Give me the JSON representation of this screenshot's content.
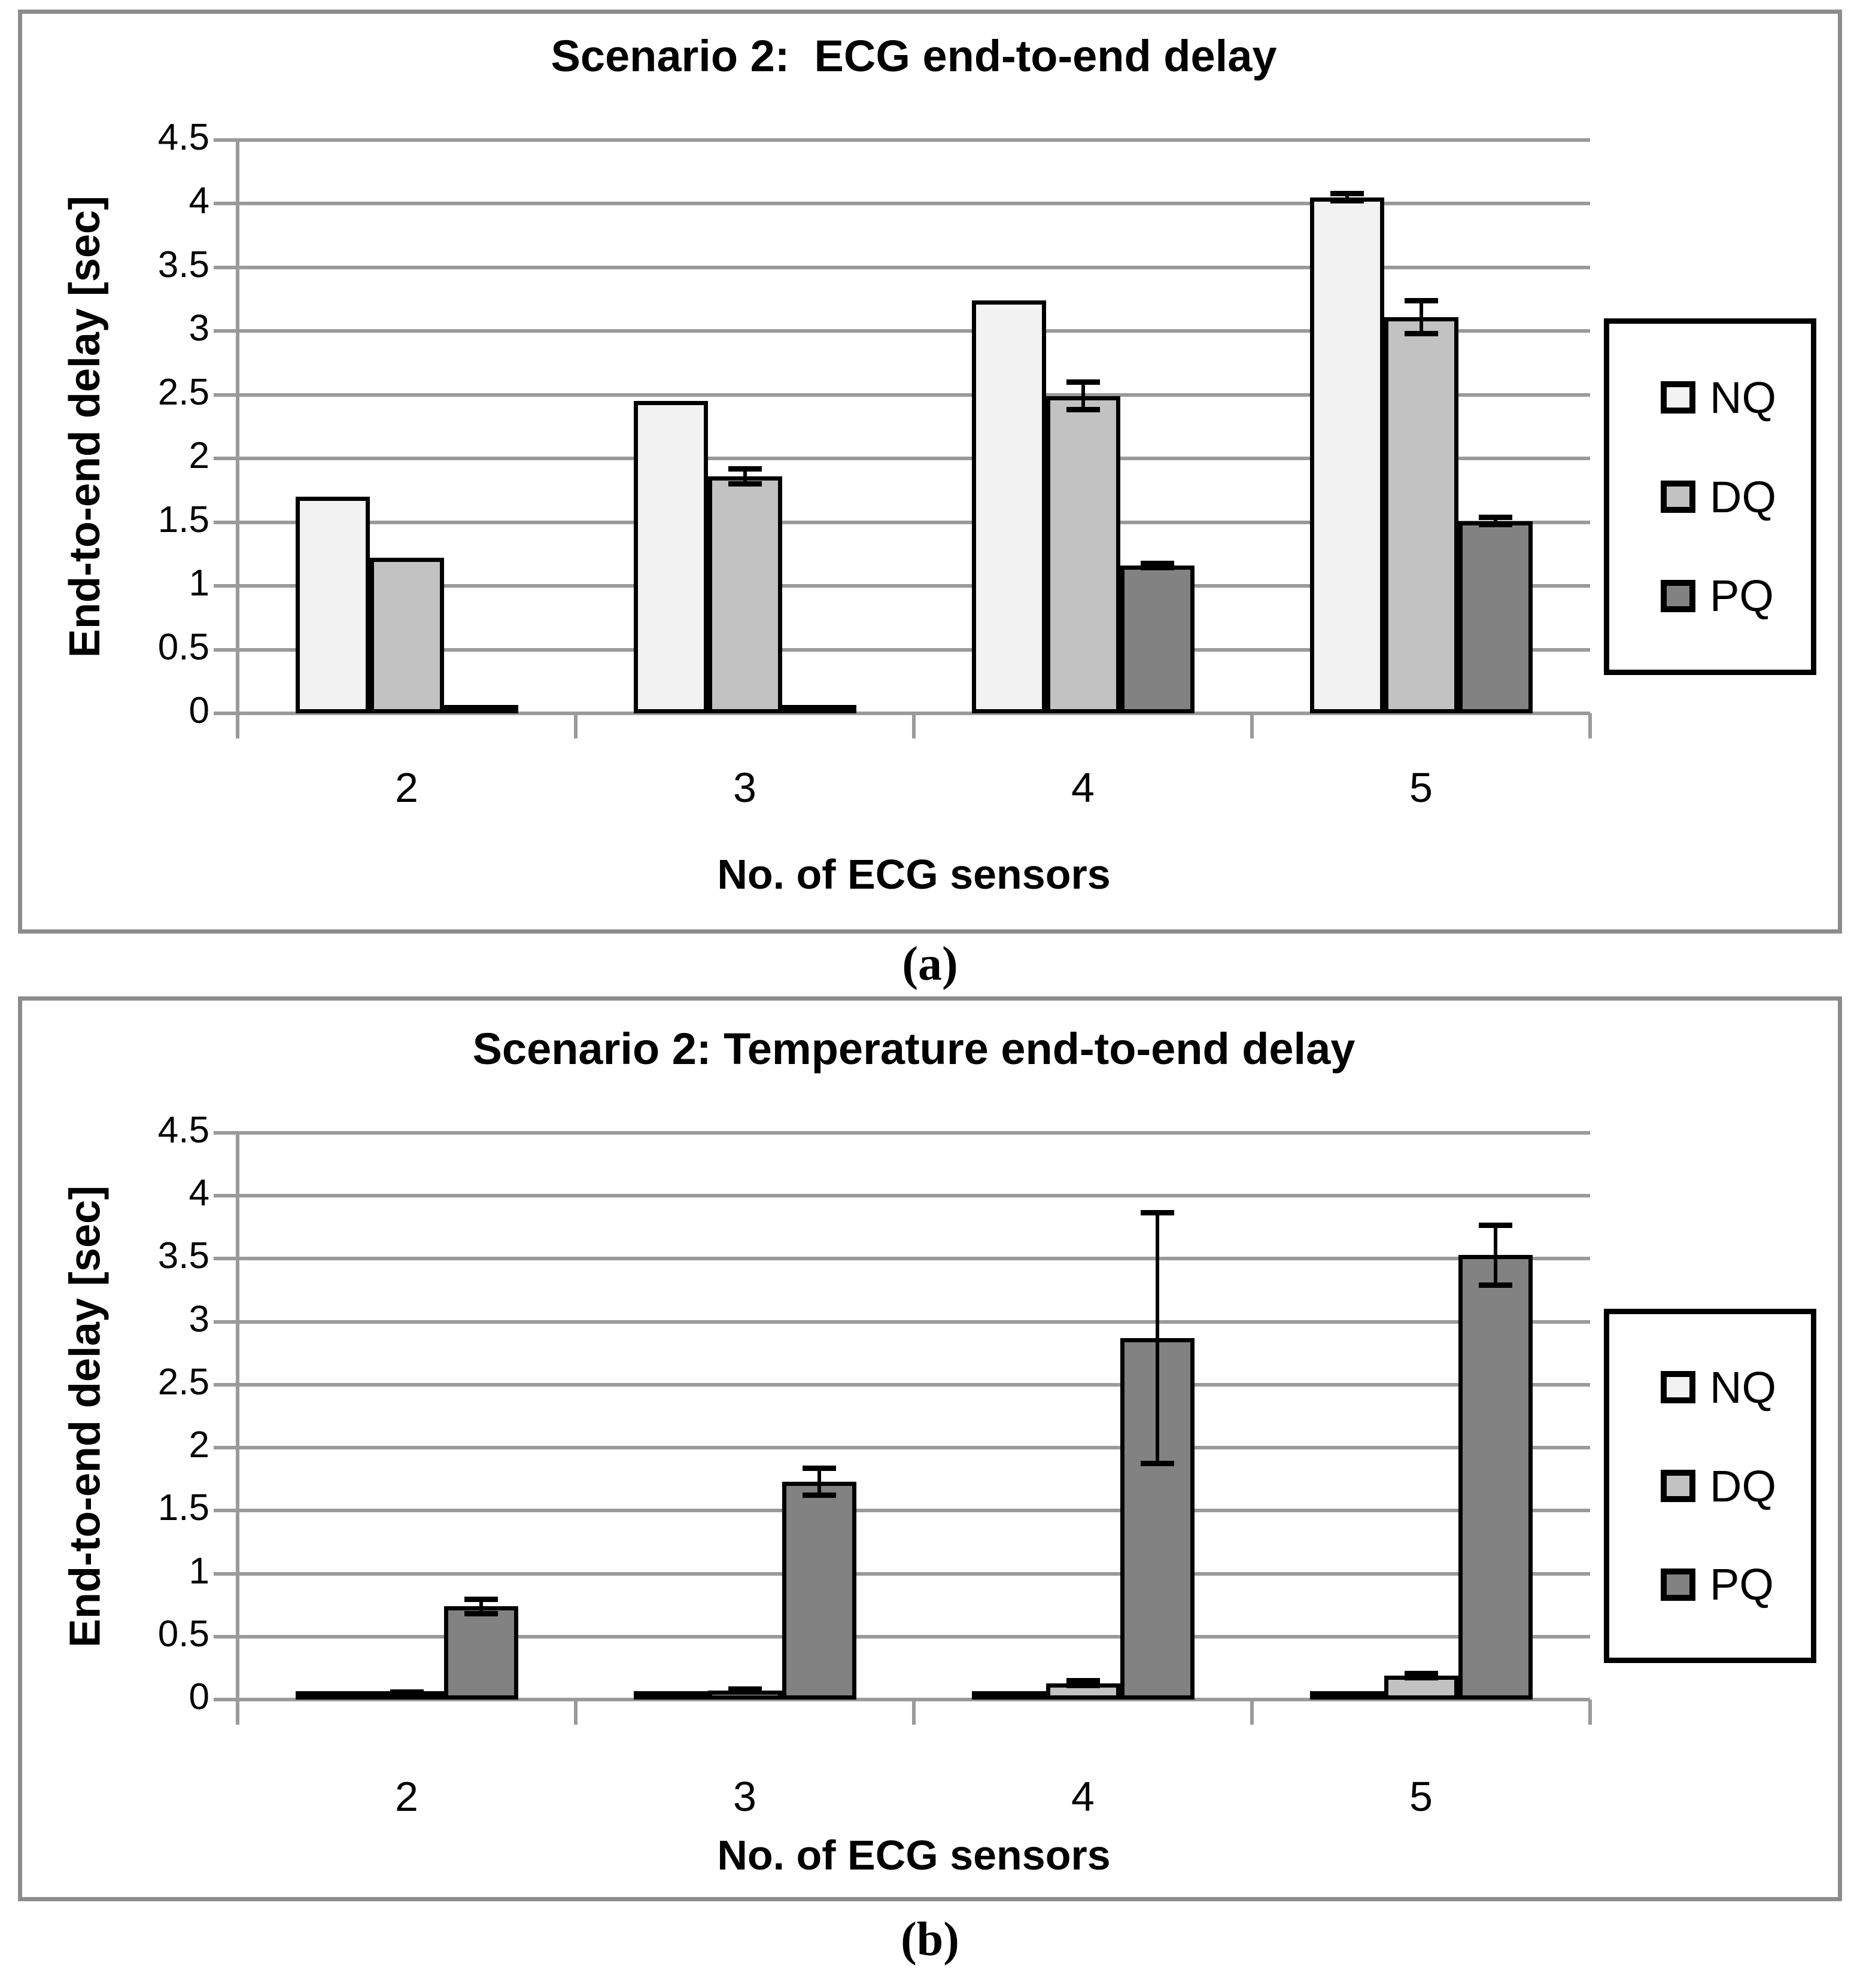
{
  "figure": {
    "panel_a_label": "(a)",
    "panel_b_label": "(b)"
  },
  "chart_data": [
    {
      "type": "bar",
      "title": "Scenario 2:  ECG end-to-end delay",
      "xlabel": "No. of ECG sensors",
      "ylabel": "End-to-end delay [sec]",
      "categories": [
        "2",
        "3",
        "4",
        "5"
      ],
      "ylim": [
        0,
        4.5
      ],
      "ytick_step": 0.5,
      "ytick_labels": [
        "0",
        "0.5",
        "1",
        "1.5",
        "2",
        "2.5",
        "3",
        "3.5",
        "4",
        "4.5"
      ],
      "grid": true,
      "legend_position": "right",
      "legend_entries": [
        "NQ",
        "DQ",
        "PQ"
      ],
      "series": [
        {
          "name": "NQ",
          "color": "#f2f2f2",
          "values": [
            1.7,
            2.45,
            3.24,
            4.05
          ],
          "errors": [
            0,
            0,
            0,
            0.03
          ]
        },
        {
          "name": "DQ",
          "color": "#c2c2c2",
          "values": [
            1.22,
            1.86,
            2.49,
            3.11
          ],
          "errors": [
            0,
            0.06,
            0.11,
            0.13
          ]
        },
        {
          "name": "PQ",
          "color": "#828282",
          "values": [
            0.015,
            0.03,
            1.16,
            1.51
          ],
          "errors": [
            0,
            0,
            0.02,
            0.03
          ]
        }
      ]
    },
    {
      "type": "bar",
      "title": "Scenario 2: Temperature end-to-end delay",
      "xlabel": "No. of ECG sensors",
      "ylabel": "End-to-end delay [sec]",
      "categories": [
        "2",
        "3",
        "4",
        "5"
      ],
      "ylim": [
        0,
        4.5
      ],
      "ytick_step": 0.5,
      "ytick_labels": [
        "0",
        "0.5",
        "1",
        "1.5",
        "2",
        "2.5",
        "3",
        "3.5",
        "4",
        "4.5"
      ],
      "grid": true,
      "legend_position": "right",
      "legend_entries": [
        "NQ",
        "DQ",
        "PQ"
      ],
      "series": [
        {
          "name": "NQ",
          "color": "#f2f2f2",
          "values": [
            0.01,
            0.01,
            0.01,
            0.01
          ],
          "errors": [
            0,
            0,
            0,
            0
          ]
        },
        {
          "name": "DQ",
          "color": "#c2c2c2",
          "values": [
            0.05,
            0.07,
            0.13,
            0.19
          ],
          "errors": [
            0.01,
            0.015,
            0.02,
            0.02
          ]
        },
        {
          "name": "PQ",
          "color": "#828282",
          "values": [
            0.74,
            1.73,
            2.87,
            3.53
          ],
          "errors": [
            0.06,
            0.11,
            1.0,
            0.24
          ]
        }
      ]
    }
  ]
}
